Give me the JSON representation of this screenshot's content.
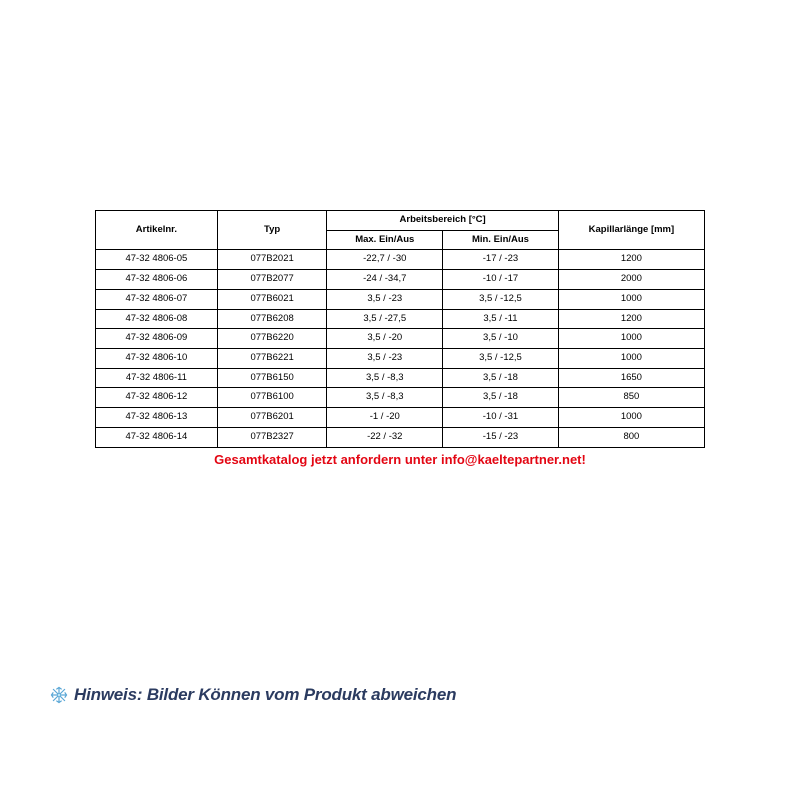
{
  "table": {
    "headers": {
      "artikelnr": "Artikelnr.",
      "typ": "Typ",
      "arbeitsbereich": "Arbeitsbereich [°C]",
      "max": "Max. Ein/Aus",
      "min": "Min. Ein/Aus",
      "kapillar": "Kapillarlänge [mm]"
    },
    "rows": [
      {
        "art": "47-32 4806-05",
        "typ": "077B2021",
        "max": "-22,7 / -30",
        "min": "-17 / -23",
        "kap": "1200"
      },
      {
        "art": "47-32 4806-06",
        "typ": "077B2077",
        "max": "-24 / -34,7",
        "min": "-10 / -17",
        "kap": "2000"
      },
      {
        "art": "47-32 4806-07",
        "typ": "077B6021",
        "max": "3,5 / -23",
        "min": "3,5 / -12,5",
        "kap": "1000"
      },
      {
        "art": "47-32 4806-08",
        "typ": "077B6208",
        "max": "3,5 / -27,5",
        "min": "3,5 / -11",
        "kap": "1200"
      },
      {
        "art": "47-32 4806-09",
        "typ": "077B6220",
        "max": "3,5 / -20",
        "min": "3,5 / -10",
        "kap": "1000"
      },
      {
        "art": "47-32 4806-10",
        "typ": "077B6221",
        "max": "3,5 / -23",
        "min": "3,5 / -12,5",
        "kap": "1000"
      },
      {
        "art": "47-32 4806-11",
        "typ": "077B6150",
        "max": "3,5 / -8,3",
        "min": "3,5 / -18",
        "kap": "1650"
      },
      {
        "art": "47-32 4806-12",
        "typ": "077B6100",
        "max": "3,5 / -8,3",
        "min": "3,5 / -18",
        "kap": "850"
      },
      {
        "art": "47-32 4806-13",
        "typ": "077B6201",
        "max": "-1 / -20",
        "min": "-10 / -31",
        "kap": "1000"
      },
      {
        "art": "47-32 4806-14",
        "typ": "077B2327",
        "max": "-22 / -32",
        "min": "-15 / -23",
        "kap": "800"
      }
    ]
  },
  "cta": "Gesamtkatalog jetzt anfordern unter info@kaeltepartner.net!",
  "hinweis": "Hinweis: Bilder Können vom Produkt abweichen",
  "colors": {
    "cta": "#e30613",
    "hinweis": "#2b3b60",
    "border": "#000000",
    "snow_fill": "#bfe6f7",
    "snow_stroke": "#5aa7d6"
  }
}
